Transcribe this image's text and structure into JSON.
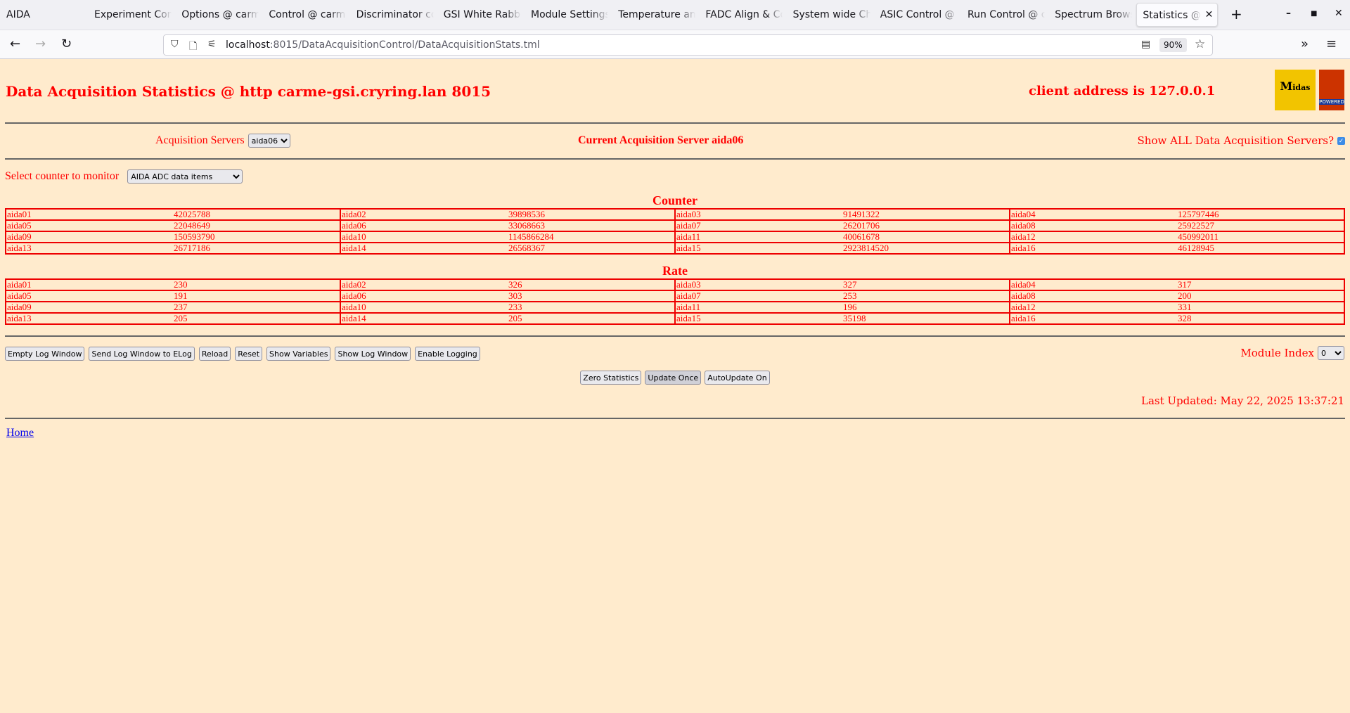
{
  "browser": {
    "app_name": "AIDA",
    "tabs": [
      "Experiment Control",
      "Options @ carme",
      "Control @ carme",
      "Discriminator control",
      "GSI White Rabbit",
      "Module Settings",
      "Temperature and",
      "FADC Align & Control",
      "System wide Checks",
      "ASIC Control @",
      "Run Control @ carme",
      "Spectrum Browser",
      "Statistics @ carme"
    ],
    "active_tab": 12,
    "url_host": "localhost",
    "url_rest": ":8015/DataAcquisitionControl/DataAcquisitionStats.tml",
    "zoom": "90%"
  },
  "page": {
    "title": "Data Acquisition Statistics @ http carme-gsi.cryring.lan 8015",
    "client_address": "client address is 127.0.0.1",
    "logo_midas": "Midas",
    "logo_tcl": "POWERED",
    "acq_servers_label": "Acquisition Servers",
    "acq_server_value": "aida06",
    "current_server": "Current Acquisition Server aida06",
    "show_all_label": "Show ALL Data Acquisition Servers?",
    "show_all_checked": true,
    "counter_select_label": "Select counter to monitor",
    "counter_select_value": "AIDA ADC data items",
    "counter_heading": "Counter",
    "rate_heading": "Rate",
    "counter": [
      [
        "aida01",
        "42025788",
        "aida02",
        "39898536",
        "aida03",
        "91491322",
        "aida04",
        "125797446"
      ],
      [
        "aida05",
        "22048649",
        "aida06",
        "33068663",
        "aida07",
        "26201706",
        "aida08",
        "25922527"
      ],
      [
        "aida09",
        "150593790",
        "aida10",
        "1145866284",
        "aida11",
        "40061678",
        "aida12",
        "450992011"
      ],
      [
        "aida13",
        "26717186",
        "aida14",
        "26568367",
        "aida15",
        "2923814520",
        "aida16",
        "46128945"
      ]
    ],
    "rate": [
      [
        "aida01",
        "230",
        "aida02",
        "326",
        "aida03",
        "327",
        "aida04",
        "317"
      ],
      [
        "aida05",
        "191",
        "aida06",
        "303",
        "aida07",
        "253",
        "aida08",
        "200"
      ],
      [
        "aida09",
        "237",
        "aida10",
        "233",
        "aida11",
        "196",
        "aida12",
        "331"
      ],
      [
        "aida13",
        "205",
        "aida14",
        "205",
        "aida15",
        "35198",
        "aida16",
        "328"
      ]
    ],
    "buttons": [
      "Empty Log Window",
      "Send Log Window to ELog",
      "Reload",
      "Reset",
      "Show Variables",
      "Show Log Window",
      "Enable Logging"
    ],
    "module_index_label": "Module Index",
    "module_index_value": "0",
    "control_buttons": [
      "Zero Statistics",
      "Update Once",
      "AutoUpdate On"
    ],
    "last_updated": "Last Updated: May 22, 2025 13:37:21",
    "home_link": "Home"
  }
}
